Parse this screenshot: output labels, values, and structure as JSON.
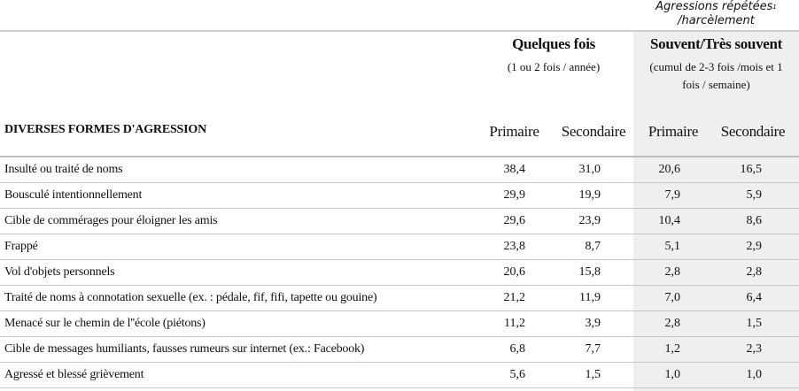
{
  "corner_note": {
    "line1": "Agressions répétées",
    "sup": "1",
    "line2": "/harcèlement"
  },
  "groups": [
    {
      "title": "Quelques fois",
      "sub1": "(1 ou 2 fois / année)",
      "sub2": ""
    },
    {
      "title": "Souvent/Très souvent",
      "sub1": "(cumul de 2-3 fois /mois et 1",
      "sub2": "fois / semaine)"
    }
  ],
  "row_header": "DIVERSES FORMES D'AGRESSION",
  "columns": [
    "Primaire",
    "Secondaire",
    "Primaire",
    "Secondaire"
  ],
  "rows": [
    {
      "label": "Insulté ou traité de noms",
      "values": [
        "38,4",
        "31,0",
        "20,6",
        "16,5"
      ]
    },
    {
      "label": "Bousculé intentionnellement",
      "values": [
        "29,9",
        "19,9",
        "7,9",
        "5,9"
      ]
    },
    {
      "label": "Cible de commérages pour éloigner les amis",
      "values": [
        "29,6",
        "23,9",
        "10,4",
        "8,6"
      ]
    },
    {
      "label": "Frappé",
      "values": [
        "23,8",
        "8,7",
        "5,1",
        "2,9"
      ]
    },
    {
      "label": "Vol d'objets personnels",
      "values": [
        "20,6",
        "15,8",
        "2,8",
        "2,8"
      ]
    },
    {
      "label": "Traité de noms à connotation sexuelle (ex. : pédale, fif, fifi, tapette ou gouine)",
      "values": [
        "21,2",
        "11,9",
        "7,0",
        "6,4"
      ]
    },
    {
      "label": "Menacé sur le chemin de l''école (piétons)",
      "values": [
        "11,2",
        "3,9",
        "2,8",
        "1,5"
      ]
    },
    {
      "label": "Cible de messages humiliants, fausses rumeurs sur internet (ex.: Facebook)",
      "values": [
        "6,8",
        "7,7",
        "1,2",
        "2,3"
      ]
    },
    {
      "label": "Agressé et blessé grièvement",
      "values": [
        "5,6",
        "1,5",
        "1,0",
        "1,0"
      ]
    }
  ]
}
